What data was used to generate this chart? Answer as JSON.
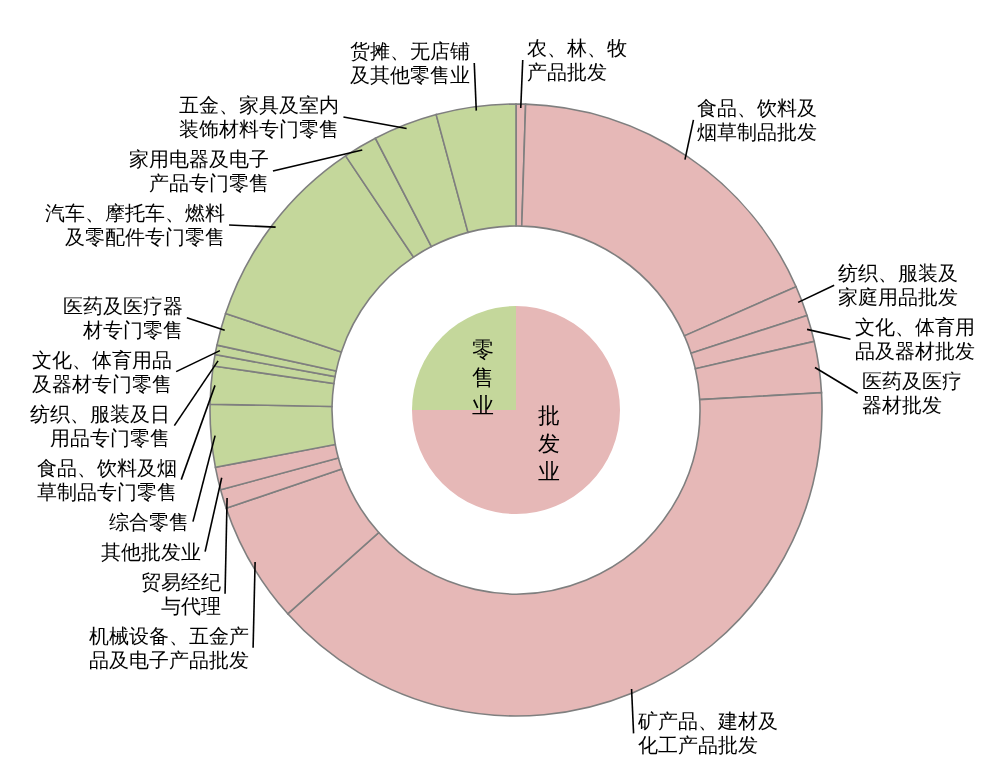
{
  "chart_data": [
    {
      "type": "pie",
      "categories": [
        "批发业",
        "零售业"
      ],
      "values": [
        75,
        25
      ],
      "colors": [
        "#e6b8b7",
        "#c4d79b"
      ]
    },
    {
      "type": "donut",
      "categories": [
        "农、林、牧产品批发",
        "食品、饮料及烟草制品批发",
        "纺织、服装及家庭用品批发",
        "文化、体育用品及器材批发",
        "医药及医疗器材批发",
        "矿产品、建材及化工产品批发",
        "机械设备、五金产品及电子产品批发",
        "贸易经纪与代理",
        "其他批发业",
        "综合零售",
        "食品、饮料及烟草制品专门零售",
        "纺织、服装及日用品专门零售",
        "文化、体育用品及器材专门零售",
        "医药及医疗器材专门零售",
        "汽车、摩托车、燃料及零配件专门零售",
        "家用电器及电子产品专门零售",
        "五金、家具及室内装饰材料专门零售",
        "货摊、无店铺及其他零售业"
      ],
      "values": [
        0.5,
        17.9,
        1.6,
        1.4,
        2.7,
        39.3,
        6.4,
        1.0,
        1.2,
        3.3,
        2.0,
        0.6,
        0.5,
        1.7,
        10.5,
        1.8,
        3.4,
        4.2
      ],
      "colors": [
        "#e6b8b7",
        "#e6b8b7",
        "#e6b8b7",
        "#e6b8b7",
        "#e6b8b7",
        "#e6b8b7",
        "#e6b8b7",
        "#e6b8b7",
        "#e6b8b7",
        "#c4d79b",
        "#c4d79b",
        "#c4d79b",
        "#c4d79b",
        "#c4d79b",
        "#c4d79b",
        "#c4d79b",
        "#c4d79b",
        "#c4d79b"
      ]
    }
  ]
}
